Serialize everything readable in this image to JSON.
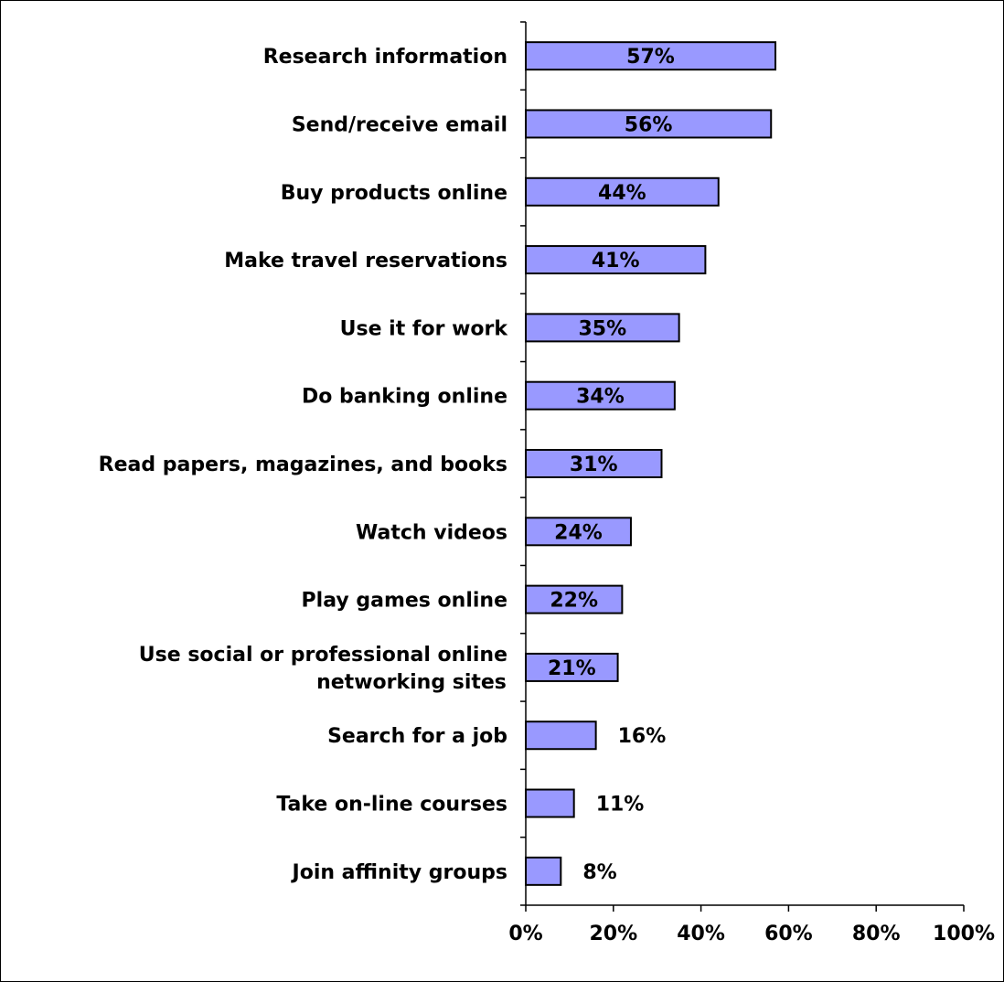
{
  "chart_data": {
    "type": "bar",
    "orientation": "horizontal",
    "categories": [
      [
        "Research information"
      ],
      [
        "Send/receive email"
      ],
      [
        "Buy products online"
      ],
      [
        "Make travel reservations"
      ],
      [
        "Use it for work"
      ],
      [
        "Do banking online"
      ],
      [
        "Read papers, magazines, and books"
      ],
      [
        "Watch videos"
      ],
      [
        "Play games online"
      ],
      [
        "Use social or professional online",
        "networking sites"
      ],
      [
        "Search for a job"
      ],
      [
        "Take on-line courses"
      ],
      [
        "Join affinity groups"
      ]
    ],
    "values": [
      57,
      56,
      44,
      41,
      35,
      34,
      31,
      24,
      22,
      21,
      16,
      11,
      8
    ],
    "data_labels": [
      "57%",
      "56%",
      "44%",
      "41%",
      "35%",
      "34%",
      "31%",
      "24%",
      "22%",
      "21%",
      "16%",
      "11%",
      "8%"
    ],
    "xlim": [
      0,
      100
    ],
    "xticks": [
      0,
      20,
      40,
      60,
      80,
      100
    ],
    "xtick_labels": [
      "0%",
      "20%",
      "40%",
      "60%",
      "80%",
      "100%"
    ],
    "bar_color": "#9999ff",
    "bar_edge_color": "#000000",
    "grid": false,
    "legend": "none"
  }
}
